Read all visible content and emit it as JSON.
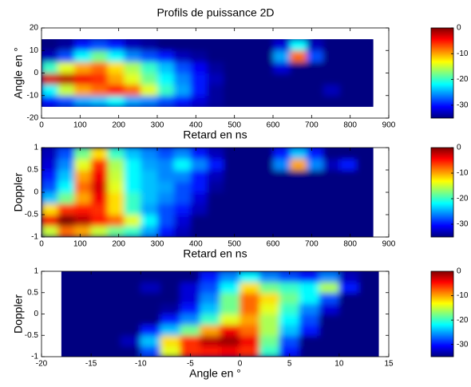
{
  "chart_data": [
    {
      "type": "heatmap",
      "title": "Profils de puissance 2D",
      "xlabel": "Retard en ns",
      "ylabel": "Angle en °",
      "xlim": [
        0,
        900
      ],
      "xticks": [
        0,
        100,
        200,
        300,
        400,
        500,
        600,
        700,
        800,
        900
      ],
      "ylim": [
        -20,
        20
      ],
      "yticks": [
        -20,
        -10,
        0,
        10,
        20
      ],
      "x": [
        21.5,
        64.5,
        107.5,
        150.5,
        193.5,
        236.5,
        279.5,
        322.5,
        365.5,
        408.5,
        451.5,
        494.5,
        537.5,
        580.5,
        623.5,
        666.5,
        709.5,
        752.5,
        795.5,
        838.5
      ],
      "y": [
        -12.5,
        -7.5,
        -2.5,
        2.5,
        7.5,
        12.5
      ],
      "z": [
        [
          -30,
          -28,
          -25,
          -24,
          -22,
          -25,
          -26,
          -28,
          -30,
          -32,
          -34,
          -35,
          -35,
          -35,
          -35,
          -35,
          -35,
          -35,
          -35,
          -35
        ],
        [
          -22,
          -15,
          -10,
          -8,
          -5,
          -8,
          -14,
          -20,
          -25,
          -30,
          -34,
          -35,
          -35,
          -35,
          -35,
          -35,
          -35,
          -33,
          -35,
          -35
        ],
        [
          -3,
          -2,
          -4,
          -6,
          -10,
          -14,
          -18,
          -22,
          -26,
          -30,
          -33,
          -35,
          -35,
          -35,
          -35,
          -35,
          -35,
          -35,
          -35,
          -35
        ],
        [
          -20,
          -14,
          -10,
          -8,
          -12,
          -16,
          -20,
          -24,
          -28,
          -31,
          -34,
          -35,
          -35,
          -35,
          -32,
          -35,
          -35,
          -35,
          -35,
          -35
        ],
        [
          -33,
          -28,
          -22,
          -18,
          -22,
          -26,
          -28,
          -30,
          -33,
          -34,
          -35,
          -35,
          -35,
          -35,
          -25,
          -8,
          -28,
          -35,
          -35,
          -35
        ],
        [
          -35,
          -34,
          -30,
          -28,
          -30,
          -33,
          -34,
          -35,
          -35,
          -35,
          -35,
          -35,
          -35,
          -35,
          -32,
          -22,
          -33,
          -35,
          -35,
          -35
        ]
      ],
      "colorbar": {
        "clim": [
          -35,
          0
        ],
        "ticks": [
          0,
          -10,
          -20,
          -30
        ]
      }
    },
    {
      "type": "heatmap",
      "xlabel": "Retard en ns",
      "ylabel": "Doppler",
      "xlim": [
        0,
        900
      ],
      "xticks": [
        0,
        100,
        200,
        300,
        400,
        500,
        600,
        700,
        800,
        900
      ],
      "ylim": [
        -1,
        1
      ],
      "yticks": [
        -1,
        -0.5,
        0,
        0.5,
        1
      ],
      "x": [
        21.5,
        64.5,
        107.5,
        150.5,
        193.5,
        236.5,
        279.5,
        322.5,
        365.5,
        408.5,
        451.5,
        494.5,
        537.5,
        580.5,
        623.5,
        666.5,
        709.5,
        752.5,
        795.5,
        838.5
      ],
      "y": [
        -0.875,
        -0.625,
        -0.375,
        -0.125,
        0.125,
        0.375,
        0.625,
        0.875
      ],
      "z": [
        [
          -15,
          -8,
          -10,
          -15,
          -18,
          -20,
          -25,
          -30,
          -33,
          -35,
          -35,
          -35,
          -35,
          -35,
          -35,
          -35,
          -35,
          -35,
          -35,
          -35
        ],
        [
          -4,
          0,
          -2,
          -5,
          -8,
          -14,
          -22,
          -28,
          -32,
          -35,
          -35,
          -35,
          -35,
          -35,
          -35,
          -35,
          -35,
          -35,
          -35,
          -35
        ],
        [
          -12,
          -6,
          -5,
          -6,
          -12,
          -20,
          -25,
          -28,
          -30,
          -33,
          -35,
          -35,
          -35,
          -35,
          -35,
          -35,
          -35,
          -35,
          -35,
          -35
        ],
        [
          -24,
          -18,
          -10,
          -4,
          -12,
          -20,
          -24,
          -26,
          -28,
          -32,
          -35,
          -35,
          -35,
          -35,
          -35,
          -35,
          -35,
          -35,
          -35,
          -35
        ],
        [
          -28,
          -22,
          -8,
          -3,
          -14,
          -22,
          -24,
          -25,
          -28,
          -30,
          -34,
          -35,
          -35,
          -35,
          -35,
          -35,
          -35,
          -35,
          -35,
          -35
        ],
        [
          -30,
          -24,
          -10,
          -4,
          -15,
          -22,
          -24,
          -26,
          -26,
          -30,
          -33,
          -35,
          -35,
          -35,
          -35,
          -35,
          -35,
          -35,
          -35,
          -35
        ],
        [
          -32,
          -26,
          -14,
          -6,
          -16,
          -22,
          -25,
          -26,
          -22,
          -26,
          -30,
          -35,
          -35,
          -35,
          -26,
          -10,
          -26,
          -33,
          -30,
          -35
        ],
        [
          -33,
          -28,
          -18,
          -12,
          -20,
          -24,
          -26,
          -28,
          -26,
          -30,
          -33,
          -35,
          -35,
          -35,
          -30,
          -24,
          -30,
          -35,
          -35,
          -35
        ]
      ],
      "colorbar": {
        "clim": [
          -35,
          0
        ],
        "ticks": [
          0,
          -10,
          -20,
          -30
        ]
      }
    },
    {
      "type": "heatmap",
      "xlabel": "Angle en °",
      "ylabel": "Doppler",
      "xlim": [
        -20,
        15
      ],
      "xticks": [
        -20,
        -15,
        -10,
        -5,
        0,
        5,
        10,
        15
      ],
      "ylim": [
        -1,
        1
      ],
      "yticks": [
        -1,
        -0.5,
        0,
        0.5,
        1
      ],
      "x": [
        -17,
        -15,
        -13,
        -11,
        -9,
        -7,
        -5,
        -3,
        -1,
        1,
        3,
        5,
        7,
        9,
        11,
        13
      ],
      "y": [
        -0.875,
        -0.625,
        -0.375,
        -0.125,
        0.125,
        0.375,
        0.625,
        0.875
      ],
      "z": [
        [
          -35,
          -35,
          -35,
          -35,
          -28,
          -14,
          -6,
          -5,
          -4,
          -6,
          -20,
          -30,
          -35,
          -35,
          -35,
          -35
        ],
        [
          -35,
          -35,
          -35,
          -33,
          -24,
          -12,
          -6,
          -2,
          -1,
          -4,
          -18,
          -28,
          -35,
          -35,
          -35,
          -35
        ],
        [
          -35,
          -35,
          -35,
          -35,
          -30,
          -24,
          -18,
          -10,
          -4,
          -8,
          -16,
          -24,
          -30,
          -35,
          -35,
          -35
        ],
        [
          -35,
          -35,
          -35,
          -35,
          -35,
          -30,
          -26,
          -20,
          -14,
          -10,
          -16,
          -22,
          -28,
          -35,
          -35,
          -35
        ],
        [
          -35,
          -35,
          -35,
          -35,
          -35,
          -34,
          -30,
          -24,
          -18,
          -8,
          -14,
          -20,
          -26,
          -32,
          -35,
          -35
        ],
        [
          -35,
          -35,
          -35,
          -35,
          -35,
          -35,
          -32,
          -26,
          -18,
          -8,
          -12,
          -18,
          -22,
          -28,
          -35,
          -35
        ],
        [
          -35,
          -35,
          -35,
          -35,
          -33,
          -35,
          -32,
          -28,
          -22,
          -12,
          -18,
          -20,
          -22,
          -16,
          -30,
          -35
        ],
        [
          -35,
          -35,
          -35,
          -35,
          -35,
          -35,
          -35,
          -30,
          -26,
          -22,
          -26,
          -28,
          -30,
          -26,
          -33,
          -35
        ]
      ],
      "colorbar": {
        "clim": [
          -35,
          0
        ],
        "ticks": [
          0,
          -10,
          -20,
          -30
        ]
      }
    }
  ]
}
